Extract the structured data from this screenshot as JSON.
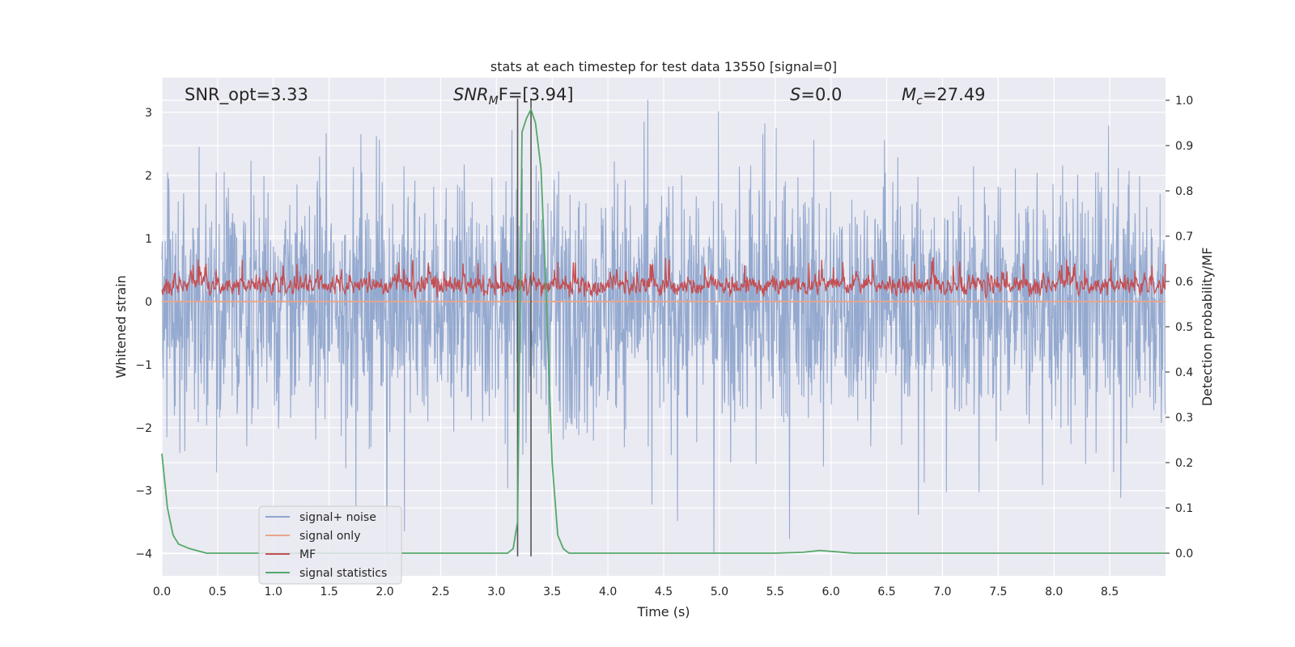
{
  "chart_data": {
    "type": "line",
    "title": "stats at each timestep for test data 13550 [signal=0]",
    "xlabel": "Time (s)",
    "ylabel_left": "Whitened strain",
    "ylabel_right": "Detection probability/MF",
    "xlim": [
      0.0,
      9.0
    ],
    "ylim_left": [
      -4.35,
      3.55
    ],
    "ylim_right": [
      -0.05,
      1.05
    ],
    "xticks": [
      "0.0",
      "0.5",
      "1.0",
      "1.5",
      "2.0",
      "2.5",
      "3.0",
      "3.5",
      "4.0",
      "4.5",
      "5.0",
      "5.5",
      "6.0",
      "6.5",
      "7.0",
      "7.5",
      "8.0",
      "8.5"
    ],
    "yticks_left": [
      "3",
      "2",
      "1",
      "0",
      "−1",
      "−2",
      "−3",
      "−4"
    ],
    "yticks_right": [
      "1.0",
      "0.9",
      "0.8",
      "0.7",
      "0.6",
      "0.5",
      "0.4",
      "0.3",
      "0.2",
      "0.1",
      "0.0"
    ],
    "grid": true,
    "legend_position": "lower-left",
    "annotations": {
      "snr_opt": "SNR_opt=3.33",
      "snr_mf_sym": "SNR",
      "snr_mf_sub": "M",
      "snr_mf_tail": "F=[3.94]",
      "s_sym": "S",
      "s_tail": "=0.0",
      "mc_sym": "M",
      "mc_sub": "c",
      "mc_tail": "=27.49"
    },
    "vlines": [
      3.19,
      3.31
    ],
    "series": [
      {
        "name": "signal+ noise",
        "color": "#8fa5cc",
        "axis": "left",
        "style": "noise",
        "approx_range": [
          -4.0,
          3.2
        ]
      },
      {
        "name": "signal only",
        "color": "#e8a58a",
        "axis": "left",
        "style": "flat",
        "value": 0.0
      },
      {
        "name": "MF",
        "color": "#c44e52",
        "axis": "left",
        "style": "mf",
        "approx_range": [
          0.0,
          0.98
        ]
      },
      {
        "name": "signal statistics",
        "color": "#55a868",
        "axis": "right",
        "x": [
          0.0,
          0.05,
          0.1,
          0.15,
          0.25,
          0.4,
          0.6,
          1.0,
          2.0,
          3.0,
          3.1,
          3.15,
          3.19,
          3.23,
          3.27,
          3.31,
          3.35,
          3.4,
          3.45,
          3.5,
          3.55,
          3.6,
          3.65,
          3.7,
          4.0,
          5.0,
          5.5,
          5.75,
          5.9,
          6.05,
          6.2,
          7.0,
          8.0,
          9.0
        ],
        "y": [
          0.22,
          0.1,
          0.04,
          0.02,
          0.01,
          0.0,
          0.0,
          0.0,
          0.0,
          0.0,
          0.0,
          0.01,
          0.07,
          0.93,
          0.96,
          0.98,
          0.95,
          0.85,
          0.55,
          0.2,
          0.04,
          0.01,
          0.0,
          0.0,
          0.0,
          0.0,
          0.0,
          0.002,
          0.006,
          0.003,
          0.0,
          0.0,
          0.0,
          0.0
        ]
      }
    ]
  }
}
